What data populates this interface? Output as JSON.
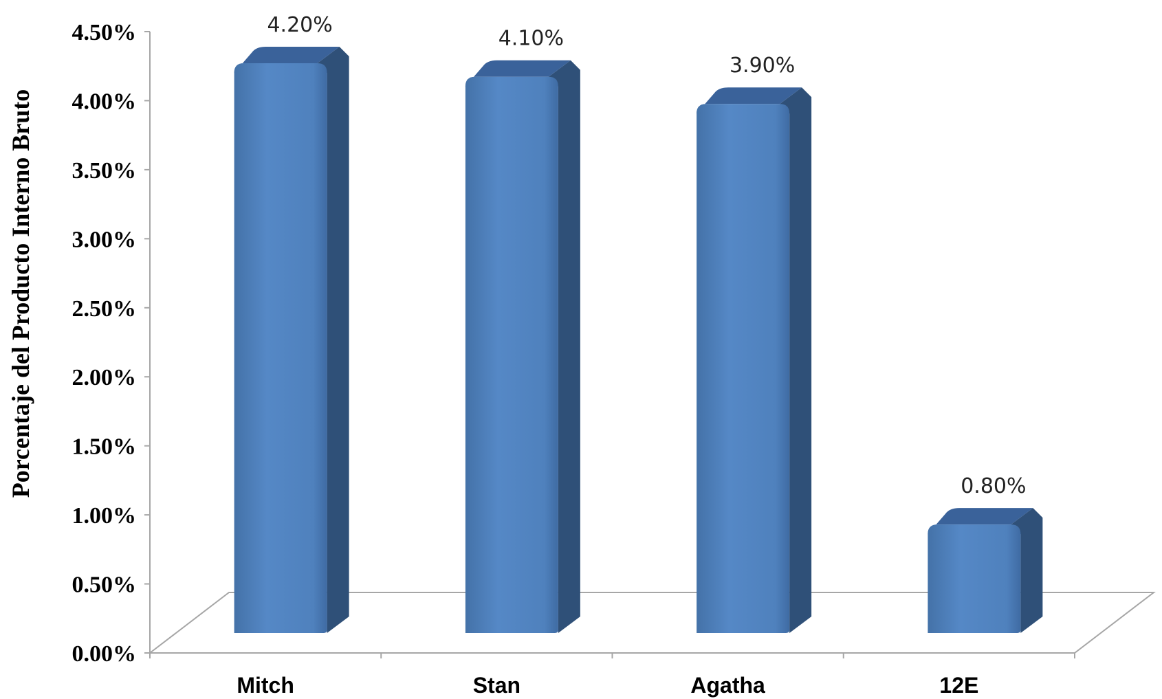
{
  "chart_data": {
    "type": "bar",
    "categories": [
      "Mitch",
      "Stan",
      "Agatha",
      "12E"
    ],
    "values": [
      4.2,
      4.1,
      3.9,
      0.8
    ],
    "data_labels": [
      "4.20%",
      "4.10%",
      "3.90%",
      "0.80%"
    ],
    "yticks": [
      "0.00%",
      "0.50%",
      "1.00%",
      "1.50%",
      "2.00%",
      "2.50%",
      "3.00%",
      "3.50%",
      "4.00%",
      "4.50%"
    ],
    "ylabel": "Porcentaje del Producto Interno Bruto",
    "xlabel": "",
    "ylim": [
      0,
      4.5
    ],
    "grid": false,
    "style": "3d-bar",
    "colors": {
      "front": "#4f81bd",
      "side": "#2f5078",
      "top": "#3a629a",
      "axis": "#a6a6a6"
    }
  }
}
